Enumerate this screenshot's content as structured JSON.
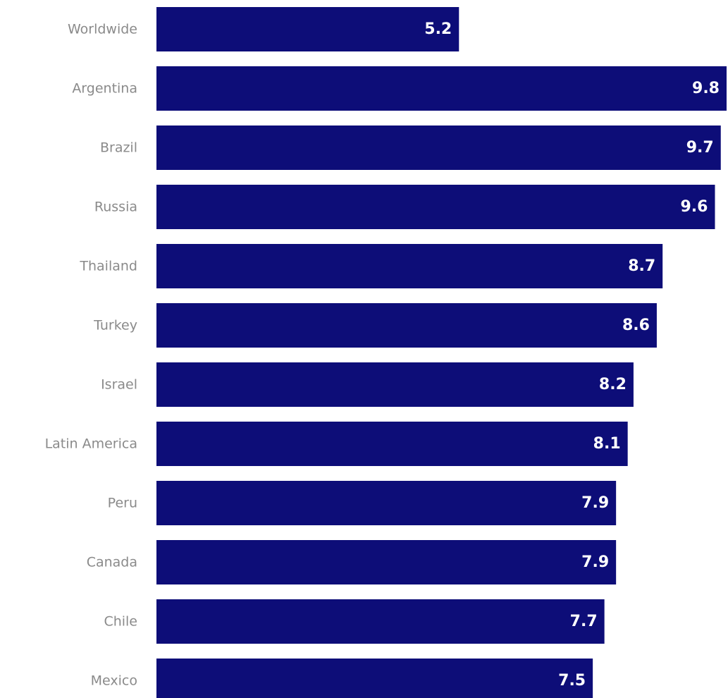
{
  "chart_data": {
    "type": "bar",
    "orientation": "horizontal",
    "categories": [
      "Worldwide",
      "Argentina",
      "Brazil",
      "Russia",
      "Thailand",
      "Turkey",
      "Israel",
      "Latin America",
      "Peru",
      "Canada",
      "Chile",
      "Mexico"
    ],
    "values": [
      5.2,
      9.8,
      9.7,
      9.6,
      8.7,
      8.6,
      8.2,
      8.1,
      7.9,
      7.9,
      7.7,
      7.5
    ],
    "value_labels": [
      "5.2",
      "9.8",
      "9.7",
      "9.6",
      "8.7",
      "8.6",
      "8.2",
      "8.1",
      "7.9",
      "7.9",
      "7.7",
      "7.5"
    ],
    "xlim": [
      0,
      9.8
    ],
    "grid": false,
    "bar_color": "#0d0d78",
    "category_label_color": "#8a8a8a",
    "value_label_color": "#ffffff"
  }
}
